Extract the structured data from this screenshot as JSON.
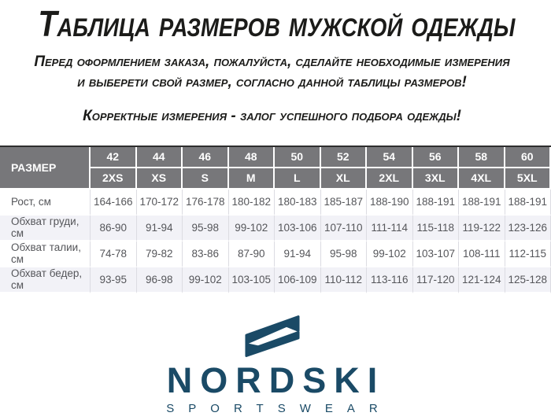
{
  "header": {
    "title": "Таблица размеров мужской одежды",
    "intro_line1": "Перед оформлением заказа, пожалуйста, сделайте необходимые измерения",
    "intro_line2": "и выберети свой размер, согласно данной таблицы размеров!",
    "note": "Корректные измерения - залог успешного подбора одежды!"
  },
  "size_table": {
    "corner_label": "РАЗМЕР",
    "size_numbers": [
      "42",
      "44",
      "46",
      "48",
      "50",
      "52",
      "54",
      "56",
      "58",
      "60"
    ],
    "size_labels": [
      "2XS",
      "XS",
      "S",
      "M",
      "L",
      "XL",
      "2XL",
      "3XL",
      "4XL",
      "5XL"
    ],
    "rows": [
      {
        "label": "Рост, см",
        "values": [
          "164-166",
          "170-172",
          "176-178",
          "180-182",
          "180-183",
          "185-187",
          "188-190",
          "188-191",
          "188-191",
          "188-191"
        ]
      },
      {
        "label": "Обхват груди, см",
        "values": [
          "86-90",
          "91-94",
          "95-98",
          "99-102",
          "103-106",
          "107-110",
          "111-114",
          "115-118",
          "119-122",
          "123-126"
        ]
      },
      {
        "label": "Обхват талии, см",
        "values": [
          "74-78",
          "79-82",
          "83-86",
          "87-90",
          "91-94",
          "95-98",
          "99-102",
          "103-107",
          "108-111",
          "112-115"
        ]
      },
      {
        "label": "Обхват бедер, см",
        "values": [
          "93-95",
          "96-98",
          "99-102",
          "103-105",
          "106-109",
          "110-112",
          "113-116",
          "117-120",
          "121-124",
          "125-128"
        ]
      }
    ]
  },
  "chart_data": {
    "type": "table",
    "title": "Таблица размеров мужской одежды",
    "columns": [
      "РАЗМЕР",
      "42 / 2XS",
      "44 / XS",
      "46 / S",
      "48 / M",
      "50 / L",
      "52 / XL",
      "54 / 2XL",
      "56 / 3XL",
      "58 / 4XL",
      "60 / 5XL"
    ],
    "rows": [
      [
        "Рост, см",
        "164-166",
        "170-172",
        "176-178",
        "180-182",
        "180-183",
        "185-187",
        "188-190",
        "188-191",
        "188-191",
        "188-191"
      ],
      [
        "Обхват груди, см",
        "86-90",
        "91-94",
        "95-98",
        "99-102",
        "103-106",
        "107-110",
        "111-114",
        "115-118",
        "119-122",
        "123-126"
      ],
      [
        "Обхват талии, см",
        "74-78",
        "79-82",
        "83-86",
        "87-90",
        "91-94",
        "95-98",
        "99-102",
        "103-107",
        "108-111",
        "112-115"
      ],
      [
        "Обхват бедер, см",
        "93-95",
        "96-98",
        "99-102",
        "103-105",
        "106-109",
        "110-112",
        "113-116",
        "117-120",
        "121-124",
        "125-128"
      ]
    ]
  },
  "logo": {
    "brand": "NORDSKI",
    "tagline": "SPORTSWEAR",
    "icon": "nordski-n-mark",
    "color": "#1a4a66"
  },
  "colors": {
    "title_text": "#1b1b19",
    "header_bg": "#77777a",
    "header_text": "#ffffff",
    "row_alt_bg": "#f2f2f7",
    "body_text": "#55565a",
    "separator": "#dcdce2",
    "table_top_border": "#2e2e2e",
    "logo_color": "#1a4a66"
  }
}
